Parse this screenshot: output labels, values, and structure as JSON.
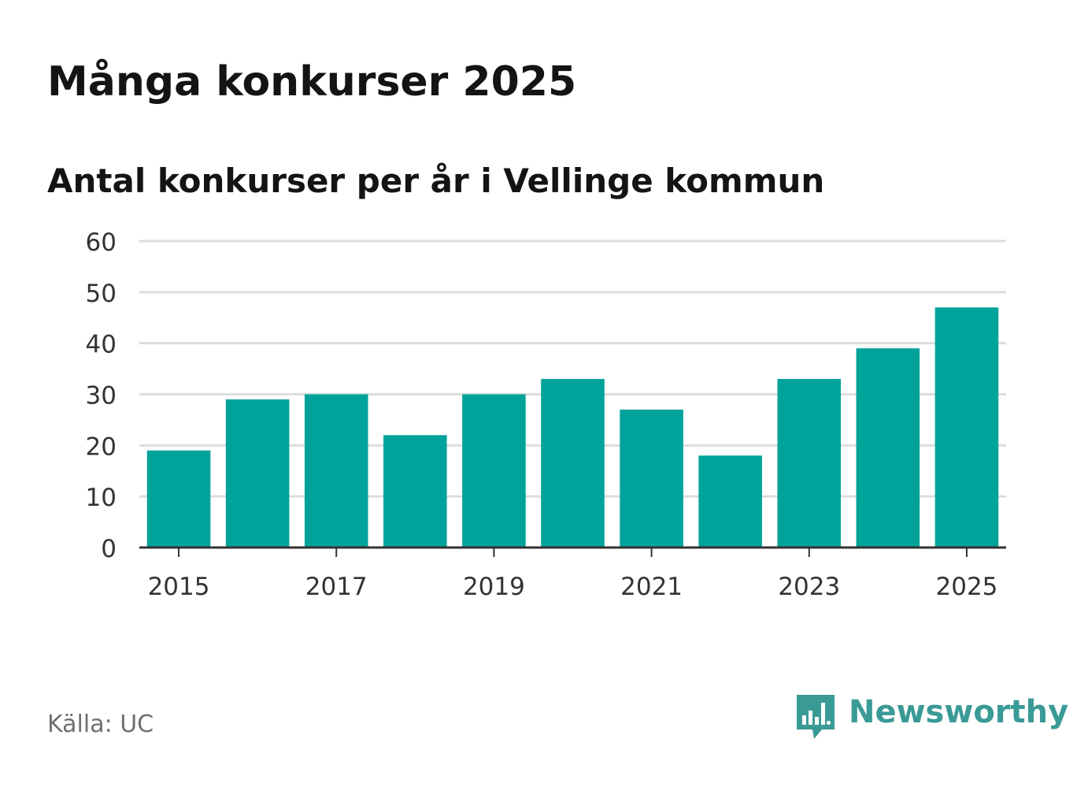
{
  "header": {
    "title": "Många konkurser 2025",
    "subtitle": "Antal konkurser per år i Vellinge kommun"
  },
  "footer": {
    "source": "Källa: UC",
    "brand": "Newsworthy",
    "brand_icon": "newsworthy-logo-icon"
  },
  "colors": {
    "bar": "#00a39a",
    "grid": "#dddddd",
    "axis": "#333333",
    "brand": "#3a9a96"
  },
  "chart_data": {
    "type": "bar",
    "title": "Många konkurser 2025",
    "subtitle": "Antal konkurser per år i Vellinge kommun",
    "categories": [
      "2015",
      "2016",
      "2017",
      "2018",
      "2019",
      "2020",
      "2021",
      "2022",
      "2023",
      "2024",
      "2025"
    ],
    "values": [
      19,
      29,
      30,
      22,
      30,
      33,
      27,
      18,
      33,
      39,
      47
    ],
    "x_tick_labels": [
      "2015",
      "2017",
      "2019",
      "2021",
      "2023",
      "2025"
    ],
    "y_ticks": [
      0,
      10,
      20,
      30,
      40,
      50,
      60
    ],
    "ylim": [
      0,
      60
    ],
    "xlabel": "",
    "ylabel": "",
    "grid": true,
    "legend": "none"
  }
}
